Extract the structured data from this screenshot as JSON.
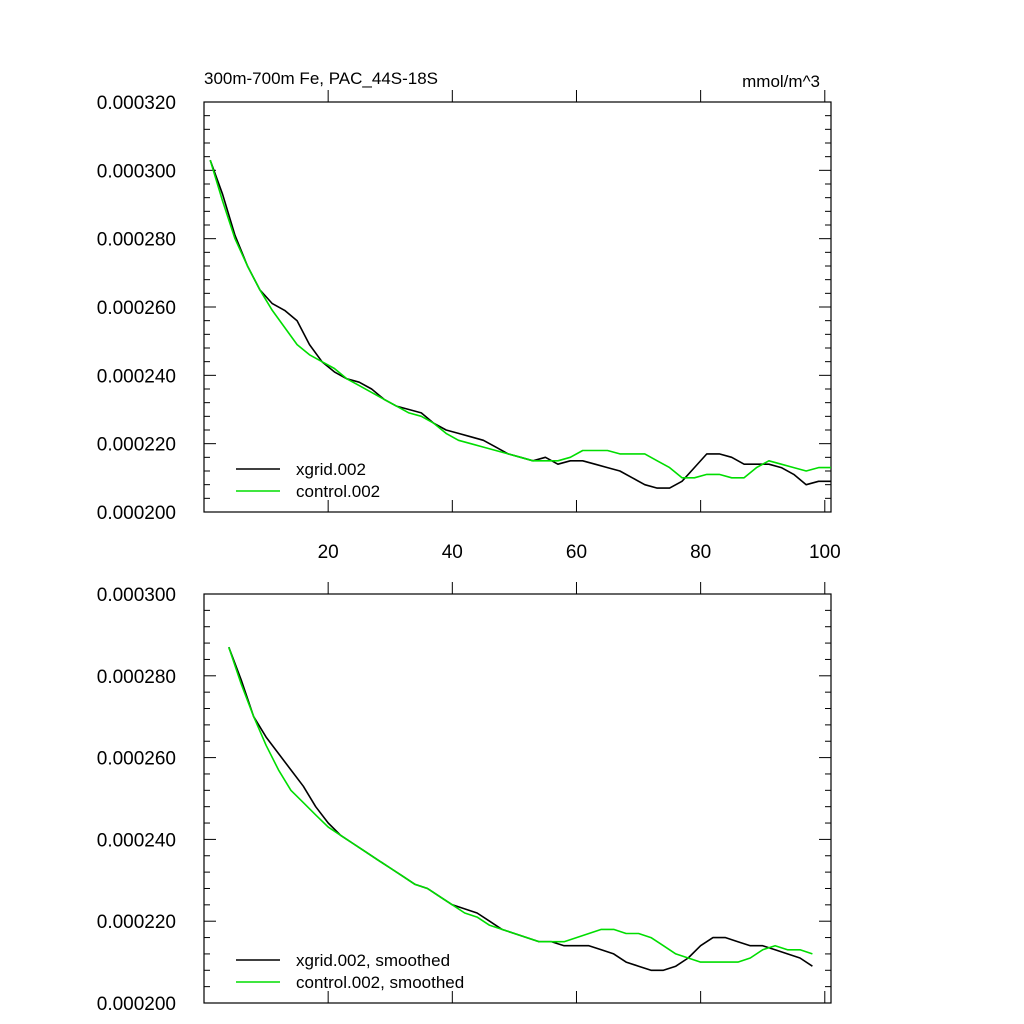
{
  "colors": {
    "xgrid": "#000000",
    "control": "#00dd00",
    "axis": "#000000",
    "background": "#ffffff"
  },
  "chart_data": [
    {
      "type": "line",
      "title": "300m-700m Fe, PAC_44S-18S",
      "units": "mmol/m^3",
      "xlabel": "",
      "ylabel": "",
      "xlim": [
        0,
        101
      ],
      "ylim": [
        0.0002,
        0.00032
      ],
      "x_ticks": [
        20,
        40,
        60,
        80,
        100
      ],
      "x_tick_labels": [
        "20",
        "40",
        "60",
        "80",
        "100"
      ],
      "y_ticks": [
        0.0002,
        0.00022,
        0.00024,
        0.00026,
        0.00028,
        0.0003,
        0.00032
      ],
      "y_tick_labels": [
        "0.000200",
        "0.000220",
        "0.000240",
        "0.000260",
        "0.000280",
        "0.000300",
        "0.000320"
      ],
      "legend_position": "bottom-left",
      "series": [
        {
          "name": "xgrid.002",
          "color_key": "xgrid",
          "x": [
            1,
            3,
            5,
            7,
            9,
            11,
            13,
            15,
            17,
            19,
            21,
            23,
            25,
            27,
            29,
            31,
            33,
            35,
            37,
            39,
            41,
            43,
            45,
            47,
            49,
            51,
            53,
            55,
            57,
            59,
            61,
            63,
            65,
            67,
            69,
            71,
            73,
            75,
            77,
            79,
            81,
            83,
            85,
            87,
            89,
            91,
            93,
            95,
            97,
            99,
            101
          ],
          "y": [
            0.000303,
            0.000293,
            0.000281,
            0.000272,
            0.000265,
            0.000261,
            0.000259,
            0.000256,
            0.000249,
            0.000244,
            0.000241,
            0.000239,
            0.000238,
            0.000236,
            0.000233,
            0.000231,
            0.00023,
            0.000229,
            0.000226,
            0.000224,
            0.000223,
            0.000222,
            0.000221,
            0.000219,
            0.000217,
            0.000216,
            0.000215,
            0.000216,
            0.000214,
            0.000215,
            0.000215,
            0.000214,
            0.000213,
            0.000212,
            0.00021,
            0.000208,
            0.000207,
            0.000207,
            0.000209,
            0.000213,
            0.000217,
            0.000217,
            0.000216,
            0.000214,
            0.000214,
            0.000214,
            0.000213,
            0.000211,
            0.000208,
            0.000209,
            0.000209
          ]
        },
        {
          "name": "control.002",
          "color_key": "control",
          "x": [
            1,
            3,
            5,
            7,
            9,
            11,
            13,
            15,
            17,
            19,
            21,
            23,
            25,
            27,
            29,
            31,
            33,
            35,
            37,
            39,
            41,
            43,
            45,
            47,
            49,
            51,
            53,
            55,
            57,
            59,
            61,
            63,
            65,
            67,
            69,
            71,
            73,
            75,
            77,
            79,
            81,
            83,
            85,
            87,
            89,
            91,
            93,
            95,
            97,
            99,
            101
          ],
          "y": [
            0.000303,
            0.000291,
            0.00028,
            0.000272,
            0.000265,
            0.000259,
            0.000254,
            0.000249,
            0.000246,
            0.000244,
            0.000242,
            0.000239,
            0.000237,
            0.000235,
            0.000233,
            0.000231,
            0.000229,
            0.000228,
            0.000226,
            0.000223,
            0.000221,
            0.00022,
            0.000219,
            0.000218,
            0.000217,
            0.000216,
            0.000215,
            0.000215,
            0.000215,
            0.000216,
            0.000218,
            0.000218,
            0.000218,
            0.000217,
            0.000217,
            0.000217,
            0.000215,
            0.000213,
            0.00021,
            0.00021,
            0.000211,
            0.000211,
            0.00021,
            0.00021,
            0.000213,
            0.000215,
            0.000214,
            0.000213,
            0.000212,
            0.000213,
            0.000213
          ]
        }
      ]
    },
    {
      "type": "line",
      "title": "",
      "xlabel": "",
      "ylabel": "",
      "xlim": [
        0,
        101
      ],
      "ylim": [
        0.0002,
        0.0003
      ],
      "x_ticks": [
        20,
        40,
        60,
        80,
        100
      ],
      "x_tick_labels": [],
      "y_ticks": [
        0.0002,
        0.00022,
        0.00024,
        0.00026,
        0.00028,
        0.0003
      ],
      "y_tick_labels": [
        "0.000200",
        "0.000220",
        "0.000240",
        "0.000260",
        "0.000280",
        "0.000300"
      ],
      "legend_position": "bottom-left",
      "series": [
        {
          "name": "xgrid.002, smoothed",
          "color_key": "xgrid",
          "x": [
            4,
            6,
            8,
            10,
            12,
            14,
            16,
            18,
            20,
            22,
            24,
            26,
            28,
            30,
            32,
            34,
            36,
            38,
            40,
            42,
            44,
            46,
            48,
            50,
            52,
            54,
            56,
            58,
            60,
            62,
            64,
            66,
            68,
            70,
            72,
            74,
            76,
            78,
            80,
            82,
            84,
            86,
            88,
            90,
            92,
            94,
            96,
            98
          ],
          "y": [
            0.000287,
            0.000279,
            0.00027,
            0.000265,
            0.000261,
            0.000257,
            0.000253,
            0.000248,
            0.000244,
            0.000241,
            0.000239,
            0.000237,
            0.000235,
            0.000233,
            0.000231,
            0.000229,
            0.000228,
            0.000226,
            0.000224,
            0.000223,
            0.000222,
            0.00022,
            0.000218,
            0.000217,
            0.000216,
            0.000215,
            0.000215,
            0.000214,
            0.000214,
            0.000214,
            0.000213,
            0.000212,
            0.00021,
            0.000209,
            0.000208,
            0.000208,
            0.000209,
            0.000211,
            0.000214,
            0.000216,
            0.000216,
            0.000215,
            0.000214,
            0.000214,
            0.000213,
            0.000212,
            0.000211,
            0.000209
          ]
        },
        {
          "name": "control.002, smoothed",
          "color_key": "control",
          "x": [
            4,
            6,
            8,
            10,
            12,
            14,
            16,
            18,
            20,
            22,
            24,
            26,
            28,
            30,
            32,
            34,
            36,
            38,
            40,
            42,
            44,
            46,
            48,
            50,
            52,
            54,
            56,
            58,
            60,
            62,
            64,
            66,
            68,
            70,
            72,
            74,
            76,
            78,
            80,
            82,
            84,
            86,
            88,
            90,
            92,
            94,
            96,
            98
          ],
          "y": [
            0.000287,
            0.000278,
            0.00027,
            0.000263,
            0.000257,
            0.000252,
            0.000249,
            0.000246,
            0.000243,
            0.000241,
            0.000239,
            0.000237,
            0.000235,
            0.000233,
            0.000231,
            0.000229,
            0.000228,
            0.000226,
            0.000224,
            0.000222,
            0.000221,
            0.000219,
            0.000218,
            0.000217,
            0.000216,
            0.000215,
            0.000215,
            0.000215,
            0.000216,
            0.000217,
            0.000218,
            0.000218,
            0.000217,
            0.000217,
            0.000216,
            0.000214,
            0.000212,
            0.000211,
            0.00021,
            0.00021,
            0.00021,
            0.00021,
            0.000211,
            0.000213,
            0.000214,
            0.000213,
            0.000213,
            0.000212
          ]
        }
      ]
    }
  ]
}
